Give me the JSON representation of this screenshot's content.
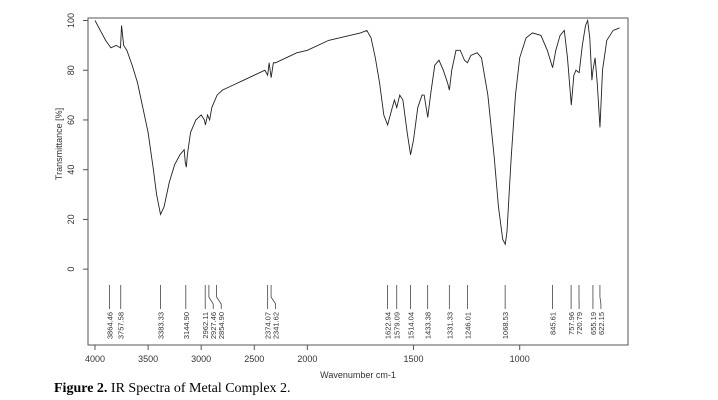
{
  "chart_data": {
    "type": "line",
    "xlabel": "Wavenumber cm-1",
    "ylabel": "Transmittance [%]",
    "xlim": [
      4066,
      490
    ],
    "x_scale_break": {
      "at": 2000,
      "factor": 2
    },
    "xticks": [
      4000,
      3500,
      3000,
      2500,
      2000,
      1500,
      1000
    ],
    "ylim": [
      -30.5,
      101
    ],
    "yticks": [
      0,
      20,
      40,
      60,
      80,
      100
    ],
    "color": "#222222",
    "x": [
      4000,
      3950,
      3900,
      3850,
      3800,
      3760,
      3750,
      3730,
      3700,
      3650,
      3600,
      3550,
      3500,
      3450,
      3420,
      3383,
      3350,
      3300,
      3250,
      3200,
      3160,
      3150,
      3140,
      3130,
      3100,
      3050,
      3000,
      2970,
      2960,
      2940,
      2920,
      2900,
      2850,
      2800,
      2700,
      2600,
      2500,
      2400,
      2374,
      2360,
      2341,
      2320,
      2300,
      2200,
      2100,
      2000,
      1900,
      1800,
      1750,
      1720,
      1700,
      1680,
      1660,
      1640,
      1622,
      1600,
      1590,
      1579,
      1565,
      1550,
      1530,
      1514,
      1500,
      1480,
      1460,
      1450,
      1433,
      1420,
      1400,
      1380,
      1360,
      1340,
      1331,
      1320,
      1300,
      1280,
      1260,
      1246,
      1230,
      1200,
      1180,
      1150,
      1120,
      1100,
      1080,
      1068,
      1060,
      1040,
      1020,
      1000,
      970,
      940,
      900,
      870,
      845,
      830,
      810,
      790,
      775,
      757,
      745,
      735,
      720,
      705,
      690,
      680,
      670,
      660,
      655,
      645,
      635,
      622,
      610,
      590,
      560,
      530
    ],
    "values": [
      100,
      96,
      92,
      89,
      90,
      89,
      98,
      90,
      88,
      82,
      75,
      65,
      55,
      40,
      30,
      22,
      25,
      35,
      42,
      46,
      48,
      43,
      41,
      46,
      55,
      60,
      62,
      60,
      58,
      62,
      60,
      65,
      70,
      72,
      74,
      76,
      78,
      80,
      78,
      83,
      77,
      83,
      83,
      85,
      87,
      88,
      92,
      94,
      95,
      96,
      93,
      85,
      75,
      62,
      58,
      65,
      68,
      65,
      70,
      68,
      55,
      46,
      52,
      65,
      70,
      70,
      61,
      70,
      82,
      84,
      80,
      75,
      72,
      80,
      88,
      88,
      84,
      83,
      86,
      87,
      85,
      70,
      45,
      25,
      12,
      10,
      15,
      45,
      70,
      85,
      93,
      95,
      94,
      88,
      81,
      88,
      94,
      96,
      85,
      66,
      78,
      80,
      79,
      90,
      98,
      100,
      93,
      76,
      80,
      85,
      75,
      57,
      80,
      92,
      96,
      97
    ],
    "peaks": [
      3864.46,
      3757.58,
      3383.33,
      {
        "value": 3144.9,
        "label": "3144.90"
      },
      2962.11,
      2927.46,
      {
        "value": 2854.9,
        "label": "2854.90"
      },
      2374.07,
      2341.62,
      1622.94,
      1579.09,
      1514.04,
      1433.38,
      1331.33,
      1246.01,
      1068.53,
      845.61,
      757.96,
      720.79,
      655.19,
      622.15
    ]
  },
  "caption": {
    "label": "Figure 2.",
    "text": "IR Spectra of Metal Complex 2."
  }
}
